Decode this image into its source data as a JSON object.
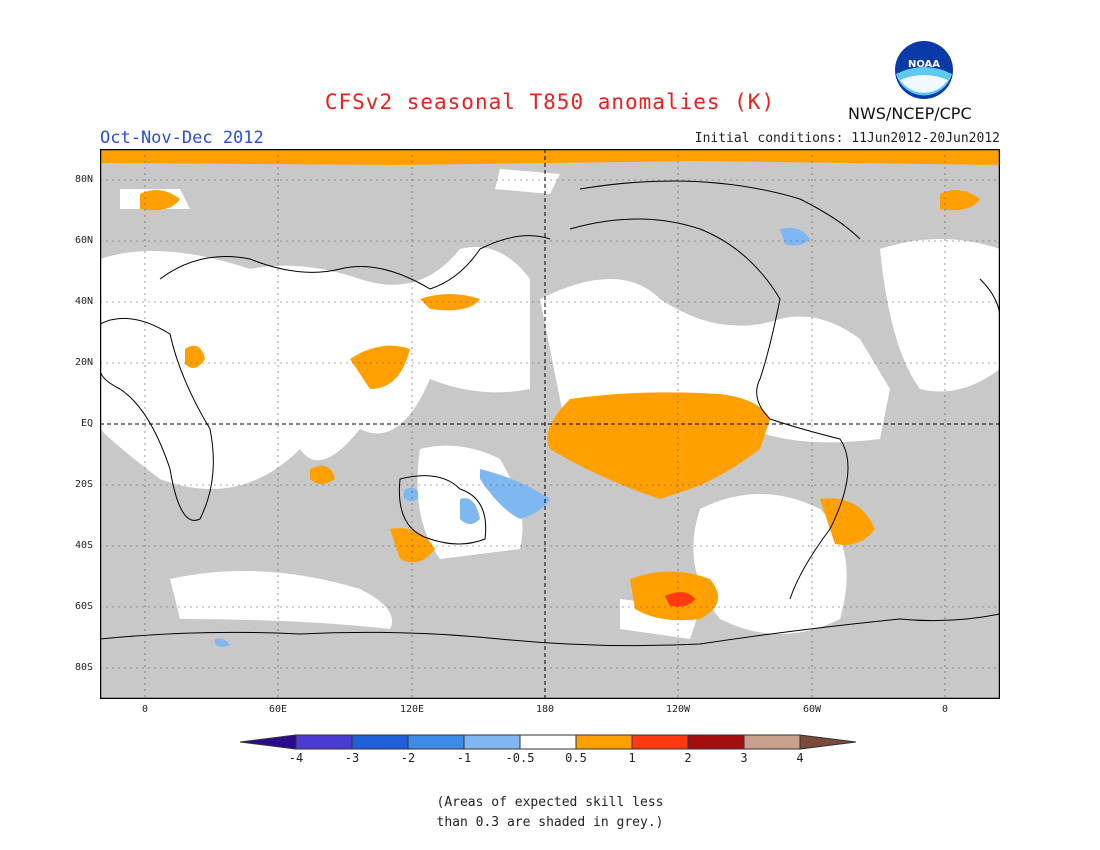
{
  "title": "CFSv2 seasonal T850 anomalies (K)",
  "period": "Oct-Nov-Dec 2012",
  "initial_conditions": "Initial conditions: 11Jun2012-20Jun2012",
  "agency": "NWS/NCEP/CPC",
  "logo_text": "NOAA",
  "lat_labels": [
    "80N",
    "60N",
    "40N",
    "20N",
    "EQ",
    "20S",
    "40S",
    "60S",
    "80S"
  ],
  "lon_labels": [
    "0",
    "60E",
    "120E",
    "180",
    "120W",
    "60W",
    "0"
  ],
  "colorbar": {
    "labels": [
      "-4",
      "-3",
      "-2",
      "-1",
      "-0.5",
      "0.5",
      "1",
      "2",
      "3",
      "4"
    ],
    "colors": [
      "#2a0a8c",
      "#4b3bd0",
      "#1f5fd8",
      "#3d8ce8",
      "#7fb7f0",
      "#ffffff",
      "#ffa000",
      "#ff3a10",
      "#a30f0f",
      "#c9a08c",
      "#7a4a3a"
    ]
  },
  "colors": {
    "skill_grey": "#c8c8c8",
    "warm_anomaly": "#ffa000",
    "strong_warm": "#ff3a10",
    "cool_anomaly": "#7fb7f0"
  },
  "note_lines": [
    "(Areas of expected skill less",
    "than 0.3 are shaded in grey.)"
  ]
}
